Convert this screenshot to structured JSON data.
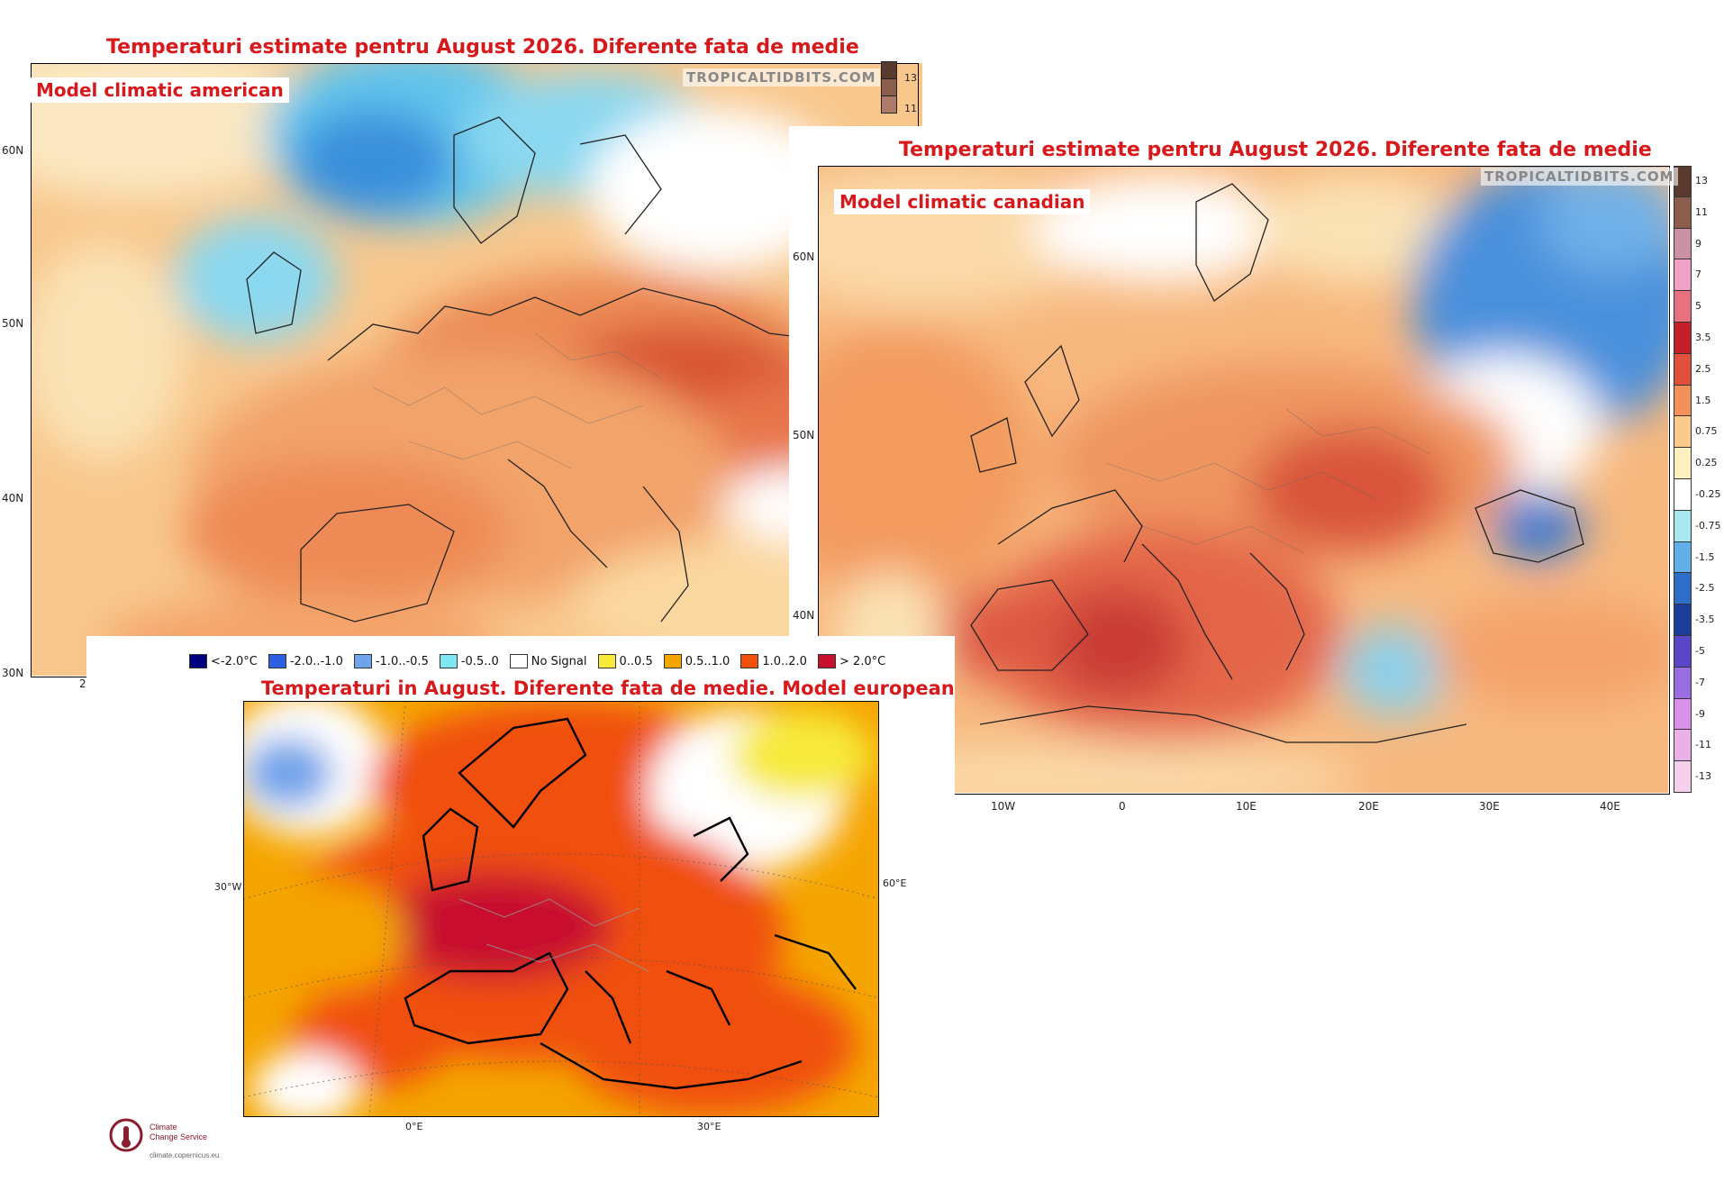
{
  "american": {
    "title": "Temperaturi estimate pentru August 2026. Diferente fata de medie",
    "model": "Model climatic american",
    "watermark": "TROPICALTIDBITS.COM",
    "lat_labels": [
      "60N",
      "50N",
      "40N",
      "30N"
    ],
    "lon_labels": [
      "2"
    ],
    "colorbar_labels": [
      "13",
      "11"
    ]
  },
  "canadian": {
    "title": "Temperaturi estimate pentru August 2026. Diferente fata de medie",
    "model": "Model climatic canadian",
    "watermark": "TROPICALTIDBITS.COM",
    "lat_labels": [
      "60N",
      "50N",
      "40N"
    ],
    "lon_labels": [
      "10W",
      "0",
      "10E",
      "20E",
      "30E",
      "40E"
    ],
    "colorbar": [
      {
        "label": "13",
        "color": "#5a3a2e"
      },
      {
        "label": "11",
        "color": "#8a5d4d"
      },
      {
        "label": "9",
        "color": "#c990a6"
      },
      {
        "label": "7",
        "color": "#f0a2c8"
      },
      {
        "label": "5",
        "color": "#e8707f"
      },
      {
        "label": "3.5",
        "color": "#c41f2a"
      },
      {
        "label": "2.5",
        "color": "#e0503a"
      },
      {
        "label": "1.5",
        "color": "#f2925a"
      },
      {
        "label": "0.75",
        "color": "#fbc98a"
      },
      {
        "label": "0.25",
        "color": "#fdf0c0"
      },
      {
        "label": "-0.25",
        "color": "#ffffff"
      },
      {
        "label": "-0.75",
        "color": "#a8e8f0"
      },
      {
        "label": "-1.5",
        "color": "#5fb0e8"
      },
      {
        "label": "-2.5",
        "color": "#2e6ec8"
      },
      {
        "label": "-3.5",
        "color": "#1c3e98"
      },
      {
        "label": "-5",
        "color": "#5a46c8"
      },
      {
        "label": "-7",
        "color": "#9a6ee0"
      },
      {
        "label": "-9",
        "color": "#d890e8"
      },
      {
        "label": "-11",
        "color": "#eab0e8"
      },
      {
        "label": "-13",
        "color": "#f4d0ec"
      }
    ]
  },
  "european": {
    "title": "Temperaturi in August. Diferente fata de medie. Model european",
    "legend": [
      {
        "label": "<-2.0°C",
        "color": "#00007f"
      },
      {
        "label": "-2.0..-1.0",
        "color": "#2e5fe0"
      },
      {
        "label": "-1.0..-0.5",
        "color": "#6fa3ea"
      },
      {
        "label": "-0.5..0",
        "color": "#7fe8f0"
      },
      {
        "label": "No Signal",
        "color": "#ffffff"
      },
      {
        "label": "0..0.5",
        "color": "#f7ea3a"
      },
      {
        "label": "0.5..1.0",
        "color": "#f5a500"
      },
      {
        "label": "1.0..2.0",
        "color": "#f0500a"
      },
      {
        "label": "> 2.0°C",
        "color": "#c8102e"
      }
    ],
    "axis_labels": {
      "w30": "30°W",
      "e60": "60°E",
      "e0": "0°E",
      "e30": "30°E"
    },
    "logo_text": [
      "Climate",
      "Change Service"
    ],
    "logo_url": "climate.copernicus.eu"
  }
}
